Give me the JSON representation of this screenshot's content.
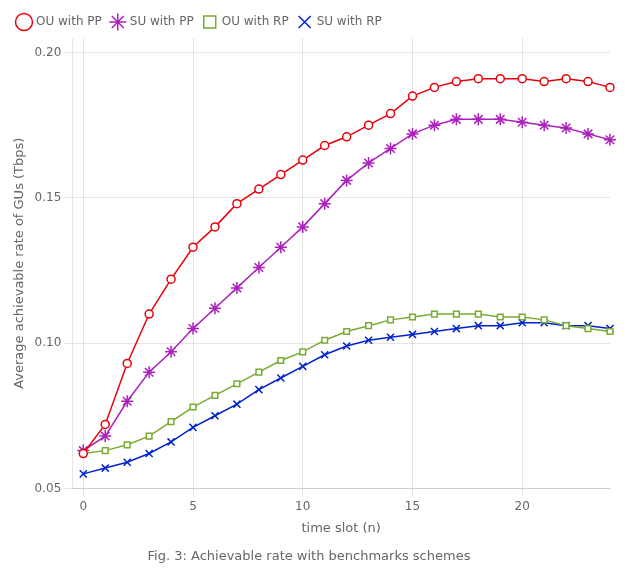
{
  "chart_data": {
    "type": "line",
    "xlabel": "time slot (n)",
    "ylabel": "Average achievable rate of GUs (Tbps)",
    "caption": "Fig. 3: Achievable rate with benchmarks schemes",
    "xlim": [
      -0.5,
      24
    ],
    "ylim": [
      0.05,
      0.205
    ],
    "xticks": [
      0,
      5,
      10,
      15,
      20
    ],
    "yticks": [
      0.05,
      {
        "value": 0.1,
        "label": "0.10"
      },
      0.15,
      {
        "value": 0.2,
        "label": "0.20"
      }
    ],
    "grid": true,
    "legend": "upper left",
    "x": [
      0,
      1,
      2,
      3,
      4,
      5,
      6,
      7,
      8,
      9,
      10,
      11,
      12,
      13,
      14,
      15,
      16,
      17,
      18,
      19,
      20,
      21,
      22,
      23,
      24
    ],
    "series": [
      {
        "name": "OU with PP",
        "color": "#e8000d",
        "marker": "circle",
        "values": [
          0.062,
          0.072,
          0.093,
          0.11,
          0.122,
          0.133,
          0.14,
          0.148,
          0.153,
          0.158,
          0.163,
          0.168,
          0.171,
          0.175,
          0.179,
          0.185,
          0.188,
          0.19,
          0.191,
          0.191,
          0.191,
          0.19,
          0.191,
          0.19,
          0.188
        ]
      },
      {
        "name": "SU with PP",
        "color": "#aa22bb",
        "marker": "star",
        "values": [
          0.063,
          0.068,
          0.08,
          0.09,
          0.097,
          0.105,
          0.112,
          0.119,
          0.126,
          0.133,
          0.14,
          0.148,
          0.156,
          0.162,
          0.167,
          0.172,
          0.175,
          0.177,
          0.177,
          0.177,
          0.176,
          0.175,
          0.174,
          0.172,
          0.17
        ]
      },
      {
        "name": "OU with RP",
        "color": "#77ac30",
        "marker": "square",
        "values": [
          0.062,
          0.063,
          0.065,
          0.068,
          0.073,
          0.078,
          0.082,
          0.086,
          0.09,
          0.094,
          0.097,
          0.101,
          0.104,
          0.106,
          0.108,
          0.109,
          0.11,
          0.11,
          0.11,
          0.109,
          0.109,
          0.108,
          0.106,
          0.105,
          0.104
        ]
      },
      {
        "name": "SU with RP",
        "color": "#0022cc",
        "marker": "x",
        "values": [
          0.055,
          0.057,
          0.059,
          0.062,
          0.066,
          0.071,
          0.075,
          0.079,
          0.084,
          0.088,
          0.092,
          0.096,
          0.099,
          0.101,
          0.102,
          0.103,
          0.104,
          0.105,
          0.106,
          0.106,
          0.107,
          0.107,
          0.106,
          0.106,
          0.105
        ]
      }
    ]
  }
}
